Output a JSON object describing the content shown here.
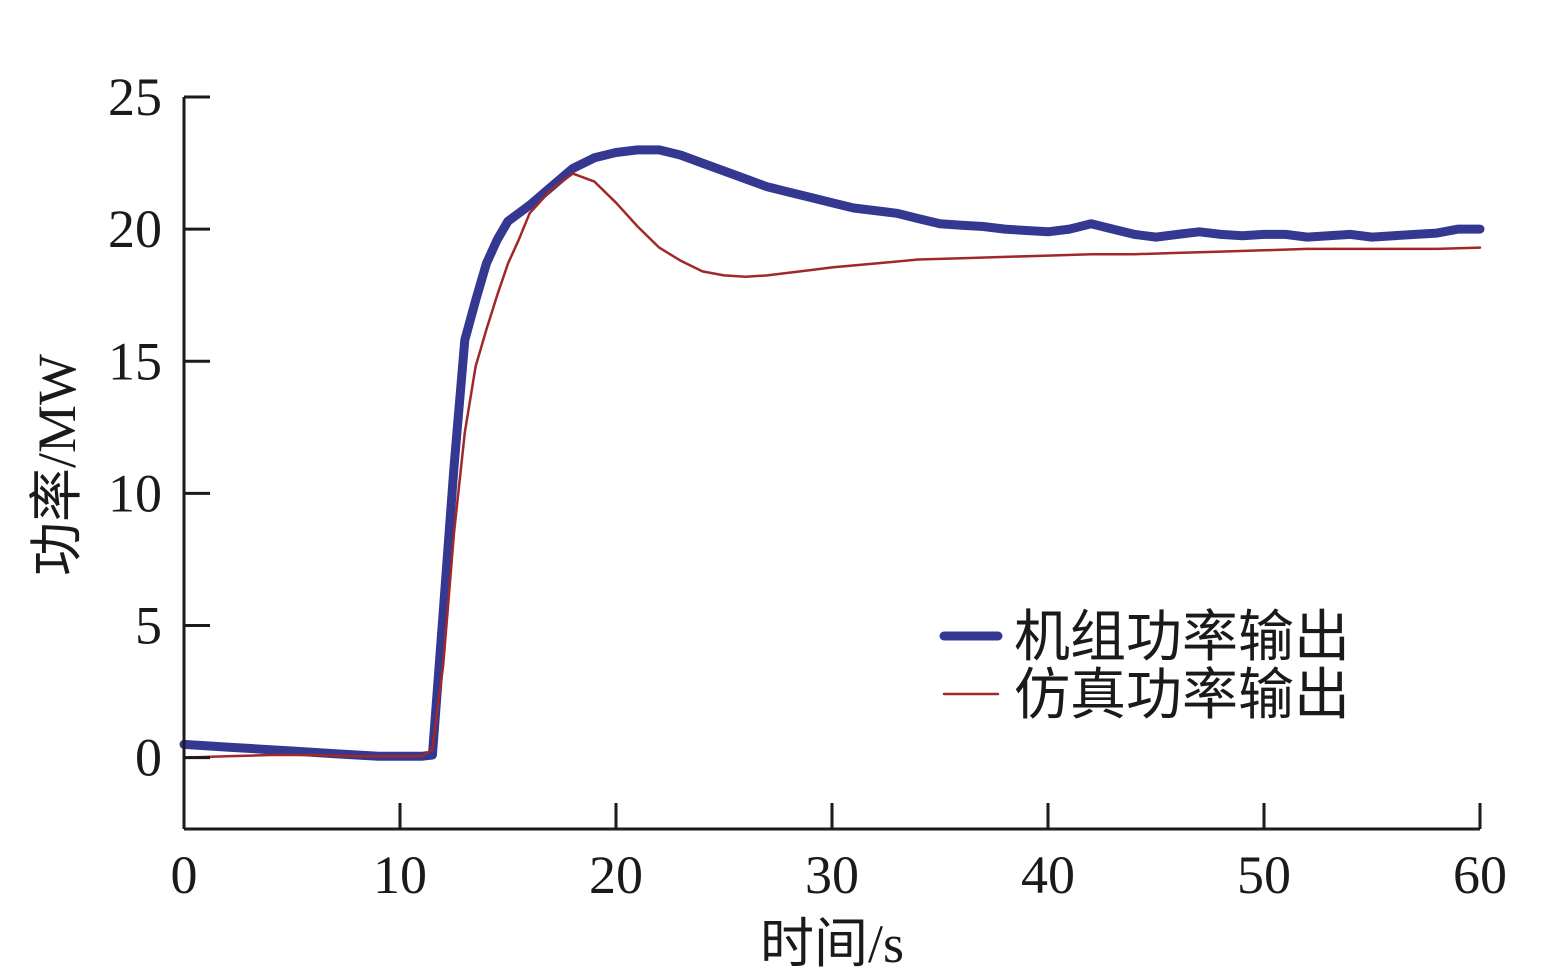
{
  "chart_data": {
    "type": "line",
    "title": "",
    "xlabel": "时间/s",
    "ylabel": "功率/MW",
    "xlim": [
      0,
      60
    ],
    "ylim": [
      -2.7,
      25
    ],
    "xticks": [
      0,
      10,
      20,
      30,
      40,
      50,
      60
    ],
    "yticks": [
      0,
      5,
      10,
      15,
      20,
      25
    ],
    "grid": false,
    "legend_position": "bottom-right",
    "series": [
      {
        "name": "机组功率输出",
        "color": "#353890",
        "style": "thick",
        "x": [
          0,
          1,
          2,
          3,
          4,
          5,
          6,
          7,
          8,
          9,
          10,
          11,
          11.5,
          12,
          12.5,
          13,
          13.5,
          14,
          14.5,
          15,
          16,
          17,
          18,
          19,
          20,
          21,
          22,
          23,
          24,
          25,
          26,
          27,
          28,
          29,
          30,
          31,
          32,
          33,
          34,
          35,
          36,
          37,
          38,
          39,
          40,
          41,
          42,
          43,
          44,
          45,
          46,
          47,
          48,
          49,
          50,
          51,
          52,
          53,
          54,
          55,
          56,
          57,
          58,
          59,
          60
        ],
        "values": [
          0.5,
          0.45,
          0.4,
          0.35,
          0.3,
          0.25,
          0.2,
          0.15,
          0.1,
          0.05,
          0.05,
          0.05,
          0.1,
          5.5,
          11,
          15.8,
          17.3,
          18.7,
          19.6,
          20.3,
          20.9,
          21.6,
          22.3,
          22.7,
          22.9,
          23.0,
          23.0,
          22.8,
          22.5,
          22.2,
          21.9,
          21.6,
          21.4,
          21.2,
          21.0,
          20.8,
          20.7,
          20.6,
          20.4,
          20.2,
          20.15,
          20.1,
          20.0,
          19.95,
          19.9,
          20.0,
          20.2,
          20.0,
          19.8,
          19.7,
          19.8,
          19.9,
          19.8,
          19.75,
          19.8,
          19.8,
          19.7,
          19.75,
          19.8,
          19.7,
          19.75,
          19.8,
          19.85,
          20.0,
          20.0
        ]
      },
      {
        "name": "仿真功率输出",
        "color": "#a0282a",
        "style": "thin",
        "x": [
          0,
          2,
          4,
          6,
          8,
          10,
          11,
          11.5,
          12,
          12.5,
          13,
          13.5,
          14,
          14.5,
          15,
          15.5,
          16,
          17,
          18,
          19,
          20,
          21,
          22,
          23,
          24,
          25,
          26,
          27,
          28,
          29,
          30,
          32,
          34,
          36,
          38,
          40,
          42,
          44,
          46,
          48,
          50,
          52,
          54,
          56,
          58,
          60
        ],
        "values": [
          0,
          0.05,
          0.1,
          0.1,
          0.05,
          0.05,
          0.05,
          0.3,
          3.5,
          8.5,
          12.3,
          14.8,
          16.2,
          17.5,
          18.7,
          19.6,
          20.6,
          21.5,
          22.1,
          21.8,
          21.0,
          20.1,
          19.3,
          18.8,
          18.4,
          18.25,
          18.2,
          18.25,
          18.35,
          18.45,
          18.55,
          18.7,
          18.85,
          18.9,
          18.95,
          19.0,
          19.05,
          19.05,
          19.1,
          19.15,
          19.2,
          19.25,
          19.25,
          19.25,
          19.25,
          19.3
        ]
      }
    ]
  }
}
